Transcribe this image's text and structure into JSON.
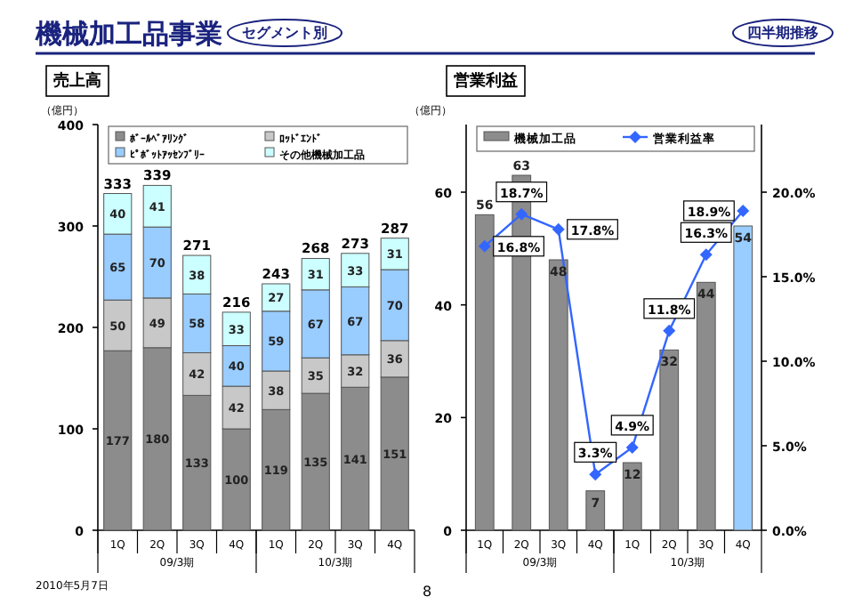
{
  "chart_data": [
    {
      "type": "bar",
      "title": "売上高",
      "ylabel": "（億円）",
      "categories": [
        "1Q",
        "2Q",
        "3Q",
        "4Q",
        "1Q",
        "2Q",
        "3Q",
        "4Q"
      ],
      "stacked": true,
      "ylim": [
        0,
        400
      ],
      "yticks": [
        0,
        100,
        200,
        300,
        400
      ],
      "legend": "top",
      "data_labels": true,
      "series": [
        {
          "name": "ﾎﾞｰﾙﾍﾞｱﾘﾝｸﾞ",
          "color": "#8c8c8c",
          "values": [
            177,
            180,
            133,
            100,
            119,
            135,
            141,
            151
          ]
        },
        {
          "name": "ﾛｯﾄﾞｴﾝﾄﾞ",
          "color": "#c8c8c8",
          "values": [
            50,
            49,
            42,
            42,
            38,
            35,
            32,
            36
          ]
        },
        {
          "name": "ﾋﾟﾎﾞｯﾄｱｯｾﾝﾌﾞﾘｰ",
          "color": "#99ccff",
          "values": [
            65,
            70,
            58,
            40,
            59,
            67,
            67,
            70
          ]
        },
        {
          "name": "その他機械加工品",
          "color": "#ccffff",
          "values": [
            40,
            41,
            38,
            33,
            27,
            31,
            33,
            31
          ]
        }
      ],
      "totals": [
        "333",
        "339",
        "271",
        "216",
        "243",
        "268",
        "273",
        "287"
      ],
      "annotations": [
        "09/3期",
        "10/3期",
        "機械加工品事業",
        "セグメント別",
        "四半期推移",
        "2010年5月7日",
        "8"
      ]
    },
    {
      "type": "bar",
      "title": "営業利益",
      "ylabel": "（億円）",
      "categories": [
        "1Q",
        "2Q",
        "3Q",
        "4Q",
        "1Q",
        "2Q",
        "3Q",
        "4Q"
      ],
      "ylim": [
        0,
        72
      ],
      "yticks": [
        0,
        20,
        40,
        60
      ],
      "y2lim": [
        0,
        24
      ],
      "y2ticks": [
        {
          "value": 0,
          "label": "0.0%"
        },
        {
          "value": 5,
          "label": "5.0%"
        },
        {
          "value": 10,
          "label": "10.0%"
        },
        {
          "value": 15,
          "label": "15.0%"
        },
        {
          "value": 20,
          "label": "20.0%"
        }
      ],
      "legend": "top",
      "data_labels": true,
      "marker": "diamond",
      "series": [
        {
          "name": "機械加工品",
          "colors": [
            "#8c8c8c",
            "#8c8c8c",
            "#8c8c8c",
            "#8c8c8c",
            "#8c8c8c",
            "#8c8c8c",
            "#8c8c8c",
            "#99ccff"
          ],
          "values": [
            56,
            63,
            48,
            7,
            12,
            32,
            44,
            54
          ]
        },
        {
          "name": "営業利益率",
          "type": "line",
          "axis": "y2",
          "color": "#3366ff",
          "values": [
            16.8,
            18.7,
            17.8,
            3.3,
            4.9,
            11.8,
            16.3,
            18.9
          ],
          "value_labels": [
            "16.8%",
            "18.7%",
            "17.8%",
            "3.3%",
            "4.9%",
            "11.8%",
            "16.3%",
            "18.9%"
          ]
        }
      ],
      "annotations": [
        "09/3期",
        "10/3期"
      ]
    }
  ]
}
